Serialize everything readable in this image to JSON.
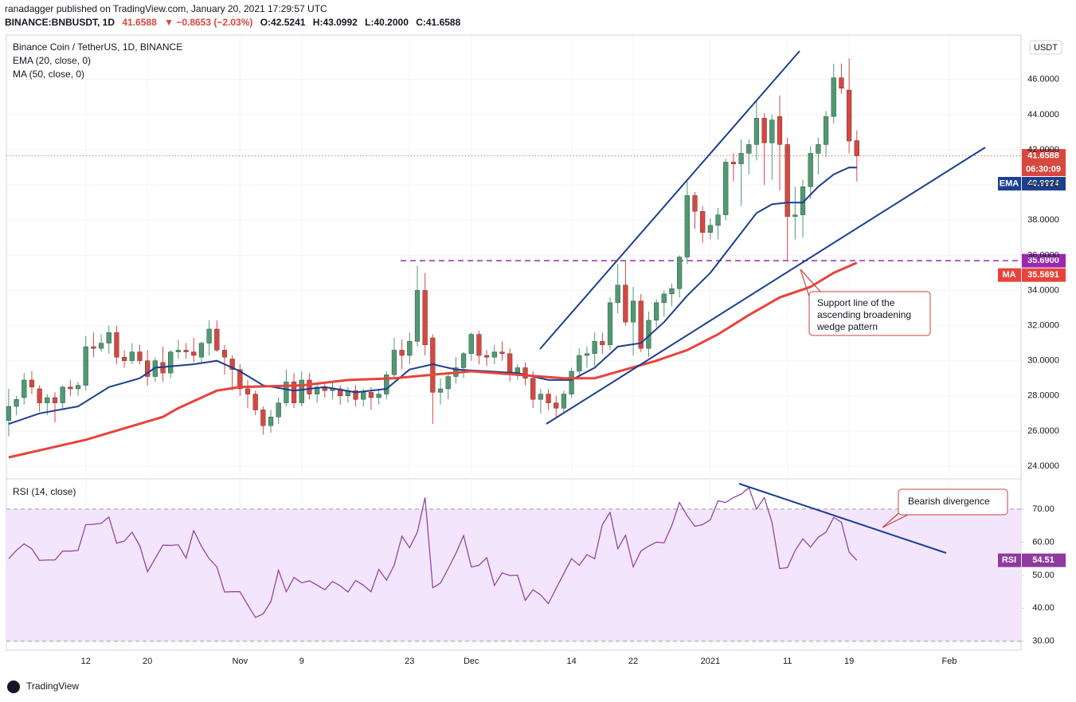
{
  "header": {
    "publisher": "ranadagger published on TradingView.com, January 20, 2021 17:29:57 UTC",
    "symbol": "BINANCE:BNBUSDT, 1D",
    "last": 41.6588,
    "change": "▼ −0.8653 (−2.03%)",
    "ohlc": [
      "O:42.5241",
      "H:43.0992",
      "L:40.2000",
      "C:41.6588"
    ]
  },
  "chart_data": [
    {
      "type": "candlestick",
      "title": "Binance Coin / TetherUS, 1D, BINANCE",
      "currency": "USDT",
      "xlim": [
        -0.3,
        131.3
      ],
      "ylim": [
        23.32,
        48.53
      ],
      "xticks": [
        {
          "value": 10,
          "label": "12"
        },
        {
          "value": 18,
          "label": "20"
        },
        {
          "value": 30,
          "label": "Nov"
        },
        {
          "value": 38,
          "label": "9"
        },
        {
          "value": 52,
          "label": "23"
        },
        {
          "value": 60,
          "label": "Dec"
        },
        {
          "value": 73,
          "label": "14"
        },
        {
          "value": 81,
          "label": "22"
        },
        {
          "value": 91,
          "label": "2021"
        },
        {
          "value": 101,
          "label": "11"
        },
        {
          "value": 109,
          "label": "19"
        },
        {
          "value": 122,
          "label": "Feb"
        }
      ],
      "yticks": [
        {
          "value": 24,
          "label": "24.0000"
        },
        {
          "value": 26,
          "label": "26.0000"
        },
        {
          "value": 28,
          "label": "28.0000"
        },
        {
          "value": 30,
          "label": "30.0000"
        },
        {
          "value": 32,
          "label": "32.0000"
        },
        {
          "value": 34,
          "label": "34.0000"
        },
        {
          "value": 36,
          "label": "36.0000"
        },
        {
          "value": 38,
          "label": "38.0000"
        },
        {
          "value": 40,
          "label": "40.0000"
        },
        {
          "value": 42,
          "label": "42.0000"
        },
        {
          "value": 44,
          "label": "44.0000"
        },
        {
          "value": 46,
          "label": "46.0000"
        }
      ],
      "grid": true,
      "up_color": "#4f9a72",
      "down_color": "#d8473f",
      "ohlc": [
        [
          26.6,
          28.4,
          25.7,
          27.4
        ],
        [
          27.4,
          28.0,
          26.9,
          27.8
        ],
        [
          27.9,
          29.3,
          27.5,
          28.9
        ],
        [
          28.9,
          29.4,
          28.1,
          28.5
        ],
        [
          28.4,
          28.6,
          27.1,
          27.6
        ],
        [
          27.6,
          28.1,
          26.9,
          27.9
        ],
        [
          27.9,
          28.2,
          26.5,
          27.6
        ],
        [
          27.6,
          28.6,
          27.2,
          28.5
        ],
        [
          28.5,
          28.9,
          28.0,
          28.4
        ],
        [
          28.4,
          28.8,
          28.0,
          28.6
        ],
        [
          28.6,
          31.4,
          28.3,
          30.8
        ],
        [
          30.8,
          31.6,
          30.2,
          30.7
        ],
        [
          30.7,
          31.5,
          30.5,
          31.0
        ],
        [
          31.0,
          32.0,
          30.4,
          31.6
        ],
        [
          31.6,
          32.0,
          29.8,
          30.2
        ],
        [
          30.2,
          30.6,
          29.6,
          30.0
        ],
        [
          30.0,
          31.0,
          29.8,
          30.5
        ],
        [
          30.5,
          30.9,
          29.8,
          30.0
        ],
        [
          30.0,
          30.6,
          28.6,
          29.1
        ],
        [
          29.1,
          30.2,
          28.8,
          30.0
        ],
        [
          29.9,
          30.8,
          28.8,
          29.3
        ],
        [
          29.3,
          30.6,
          29.0,
          30.5
        ],
        [
          30.5,
          31.2,
          30.1,
          30.6
        ],
        [
          30.6,
          31.0,
          30.1,
          30.5
        ],
        [
          30.5,
          31.3,
          29.9,
          30.3
        ],
        [
          30.2,
          31.1,
          29.9,
          31.0
        ],
        [
          31.0,
          32.3,
          30.3,
          31.8
        ],
        [
          31.8,
          32.3,
          30.5,
          30.6
        ],
        [
          30.6,
          30.9,
          29.2,
          30.2
        ],
        [
          30.1,
          30.3,
          28.3,
          29.5
        ],
        [
          29.5,
          29.8,
          28.0,
          28.4
        ],
        [
          28.4,
          28.9,
          27.3,
          28.1
        ],
        [
          28.1,
          28.3,
          26.9,
          27.2
        ],
        [
          27.2,
          27.4,
          25.8,
          26.3
        ],
        [
          26.3,
          27.2,
          25.9,
          26.8
        ],
        [
          26.8,
          27.9,
          26.4,
          27.6
        ],
        [
          27.6,
          29.5,
          27.4,
          28.8
        ],
        [
          28.8,
          29.3,
          27.3,
          27.6
        ],
        [
          27.6,
          29.4,
          27.4,
          28.9
        ],
        [
          28.9,
          29.3,
          27.8,
          28.1
        ],
        [
          28.1,
          28.7,
          27.6,
          28.5
        ],
        [
          28.5,
          28.8,
          27.9,
          28.3
        ],
        [
          28.3,
          28.8,
          27.8,
          28.4
        ],
        [
          28.4,
          28.6,
          27.5,
          28.0
        ],
        [
          28.0,
          28.5,
          27.6,
          28.3
        ],
        [
          28.3,
          28.6,
          27.4,
          27.8
        ],
        [
          27.8,
          28.4,
          27.4,
          28.2
        ],
        [
          28.2,
          28.5,
          27.2,
          27.9
        ],
        [
          27.9,
          28.4,
          27.5,
          28.1
        ],
        [
          28.1,
          29.4,
          27.8,
          29.2
        ],
        [
          29.2,
          31.3,
          29.0,
          30.6
        ],
        [
          30.6,
          31.2,
          29.5,
          30.3
        ],
        [
          30.3,
          31.6,
          29.8,
          31.1
        ],
        [
          31.1,
          35.4,
          30.8,
          34.0
        ],
        [
          34.0,
          35.0,
          30.3,
          30.9
        ],
        [
          31.3,
          31.5,
          26.4,
          28.2
        ],
        [
          28.2,
          29.0,
          27.5,
          28.4
        ],
        [
          28.4,
          29.3,
          27.8,
          29.1
        ],
        [
          29.1,
          30.2,
          28.7,
          29.6
        ],
        [
          29.6,
          30.5,
          29.0,
          30.4
        ],
        [
          30.4,
          31.6,
          30.0,
          31.5
        ],
        [
          31.5,
          31.7,
          29.8,
          30.3
        ],
        [
          30.3,
          30.6,
          29.7,
          30.2
        ],
        [
          30.2,
          30.9,
          29.8,
          30.5
        ],
        [
          30.5,
          31.1,
          30.0,
          30.4
        ],
        [
          30.4,
          30.7,
          28.8,
          29.2
        ],
        [
          29.2,
          29.8,
          28.9,
          29.6
        ],
        [
          29.6,
          29.9,
          28.6,
          29.0
        ],
        [
          29.0,
          29.4,
          27.3,
          27.8
        ],
        [
          27.8,
          28.4,
          27.0,
          28.1
        ],
        [
          28.1,
          28.4,
          27.2,
          27.6
        ],
        [
          27.6,
          28.0,
          26.8,
          27.3
        ],
        [
          27.3,
          28.3,
          27.0,
          28.1
        ],
        [
          28.1,
          29.6,
          27.9,
          29.4
        ],
        [
          29.4,
          30.7,
          29.1,
          30.3
        ],
        [
          30.3,
          30.8,
          29.6,
          30.4
        ],
        [
          30.4,
          31.6,
          29.7,
          31.1
        ],
        [
          31.1,
          31.6,
          30.4,
          30.9
        ],
        [
          30.9,
          33.6,
          30.6,
          33.3
        ],
        [
          33.3,
          35.5,
          32.7,
          34.3
        ],
        [
          34.3,
          35.7,
          32.0,
          32.2
        ],
        [
          32.2,
          34.2,
          30.3,
          33.4
        ],
        [
          33.4,
          33.8,
          30.5,
          30.7
        ],
        [
          30.7,
          32.8,
          30.2,
          32.3
        ],
        [
          32.3,
          33.5,
          31.9,
          33.3
        ],
        [
          33.3,
          34.0,
          32.5,
          33.8
        ],
        [
          33.8,
          34.4,
          33.1,
          34.1
        ],
        [
          34.1,
          36.0,
          33.6,
          35.9
        ],
        [
          35.9,
          40.2,
          35.5,
          39.4
        ],
        [
          39.4,
          39.6,
          37.5,
          38.5
        ],
        [
          38.5,
          38.8,
          36.7,
          37.3
        ],
        [
          37.3,
          38.1,
          36.9,
          37.7
        ],
        [
          37.7,
          38.7,
          36.9,
          38.3
        ],
        [
          38.3,
          41.5,
          38.0,
          41.3
        ],
        [
          41.3,
          41.8,
          40.2,
          41.2
        ],
        [
          41.2,
          42.6,
          38.8,
          41.8
        ],
        [
          41.8,
          42.6,
          40.6,
          42.3
        ],
        [
          42.3,
          44.8,
          41.4,
          43.8
        ],
        [
          43.8,
          44.1,
          40.0,
          42.4
        ],
        [
          42.4,
          44.0,
          40.3,
          43.7
        ],
        [
          43.9,
          45.1,
          39.7,
          42.3
        ],
        [
          42.3,
          42.7,
          35.7,
          38.2
        ],
        [
          38.2,
          39.9,
          36.9,
          38.3
        ],
        [
          38.3,
          40.3,
          37.0,
          39.9
        ],
        [
          39.9,
          42.2,
          39.2,
          41.8
        ],
        [
          41.8,
          42.7,
          40.6,
          42.3
        ],
        [
          42.3,
          44.2,
          41.6,
          43.9
        ],
        [
          43.9,
          46.9,
          43.5,
          46.1
        ],
        [
          46.1,
          46.9,
          45.2,
          45.5
        ],
        [
          45.4,
          47.2,
          41.8,
          42.5
        ],
        [
          42.5241,
          43.0992,
          40.2,
          41.6588
        ]
      ],
      "series": [
        {
          "name": "EMA (20, close, 0)",
          "color": "#1c3f8f",
          "x": [
            0,
            4,
            9,
            13,
            17,
            19,
            24,
            27,
            30,
            33,
            37,
            41,
            45,
            49,
            52,
            55,
            58,
            62,
            66,
            70,
            73,
            76,
            79,
            82,
            85,
            88,
            91,
            94,
            97,
            99,
            101,
            103,
            105,
            107,
            109,
            110
          ],
          "values": [
            26.4,
            27.0,
            27.4,
            28.5,
            29.0,
            29.6,
            29.8,
            30.0,
            29.4,
            28.6,
            28.3,
            28.5,
            28.2,
            28.4,
            29.5,
            29.8,
            29.5,
            29.4,
            29.3,
            28.9,
            28.9,
            29.6,
            30.8,
            31.0,
            32.2,
            33.7,
            35.0,
            36.7,
            38.4,
            38.9,
            39.0,
            39.0,
            39.9,
            40.6,
            41.0,
            40.9924
          ]
        },
        {
          "name": "MA (50, close, 0)",
          "color": "#e8433b",
          "x": [
            0,
            10,
            20,
            22,
            27,
            30,
            38,
            44,
            50,
            55,
            60,
            66,
            72,
            76,
            80,
            84,
            88,
            92,
            96,
            100,
            104,
            107,
            110
          ],
          "values": [
            24.5,
            25.5,
            26.8,
            27.3,
            28.3,
            28.5,
            28.6,
            28.9,
            29.0,
            29.2,
            29.4,
            29.2,
            29.0,
            29.0,
            29.5,
            30.0,
            30.6,
            31.5,
            32.6,
            33.6,
            34.2,
            35.0,
            35.5691
          ]
        }
      ],
      "last_price": {
        "label": "41.6588",
        "value": 41.6588,
        "countdown": "06:30:09",
        "color": "#d8473f"
      },
      "price_tags": [
        {
          "name": "EMA",
          "label": "40.9924",
          "value": 40.9924,
          "color": "#1c3f8f"
        },
        {
          "label": "35.6900",
          "value": 35.69,
          "color": "#9c27b0"
        },
        {
          "name": "MA",
          "label": "35.5691",
          "value": 35.5691,
          "color": "#e8433b"
        }
      ],
      "level": {
        "value": 35.69,
        "color": "#9c27b0"
      },
      "annotation": [
        "Support line of the",
        "ascending broadening",
        "wedge pattern"
      ]
    },
    {
      "type": "line",
      "title": "RSI (14, close)",
      "xlim": [
        -0.3,
        131.3
      ],
      "ylim": [
        27.3,
        78.9
      ],
      "yticks": [
        {
          "value": 30,
          "label": "30.00"
        },
        {
          "value": 40,
          "label": "40.00"
        },
        {
          "value": 50,
          "label": "50.00"
        },
        {
          "value": 60,
          "label": "60.00"
        },
        {
          "value": 70,
          "label": "70.00"
        }
      ],
      "band": [
        30,
        70
      ],
      "color": "#8e3a9e",
      "values": [
        55.0,
        57.5,
        59.5,
        58.0,
        54.5,
        54.6,
        54.6,
        57.3,
        57.3,
        57.5,
        65.3,
        65.4,
        65.7,
        67.6,
        59.7,
        60.3,
        63.0,
        58.9,
        51.0,
        55.0,
        59.1,
        59.0,
        59.2,
        55.2,
        63.5,
        58.8,
        55.0,
        52.5,
        44.9,
        45.0,
        45.0,
        41.0,
        37.2,
        38.3,
        42.0,
        51.5,
        45.0,
        49.3,
        47.7,
        48.3,
        47.0,
        45.6,
        48.1,
        46.8,
        44.9,
        48.4,
        47.0,
        45.0,
        51.8,
        48.5,
        53.0,
        61.8,
        58.3,
        63.0,
        73.5,
        46.2,
        47.6,
        52.0,
        56.6,
        62.0,
        52.5,
        53.0,
        55.3,
        46.9,
        50.7,
        49.9,
        50.0,
        42.4,
        45.6,
        44.0,
        41.4,
        46.0,
        50.5,
        55.0,
        53.0,
        56.2,
        55.0,
        65.3,
        69.0,
        58.0,
        62.1,
        52.5,
        57.3,
        58.8,
        60.0,
        59.8,
        65.0,
        72.0,
        68.0,
        64.8,
        65.3,
        66.8,
        72.5,
        72.0,
        73.5,
        74.5,
        76.5,
        70.0,
        73.5,
        66.0,
        52.0,
        52.3,
        57.5,
        61.0,
        58.5,
        61.5,
        63.0,
        67.5,
        66.0,
        57.0,
        54.51
      ],
      "tag": {
        "name": "RSI",
        "label": "54.51",
        "value": 54.51
      },
      "annotation": "Bearish divergence"
    }
  ],
  "footer": {
    "brand": "TradingView"
  }
}
